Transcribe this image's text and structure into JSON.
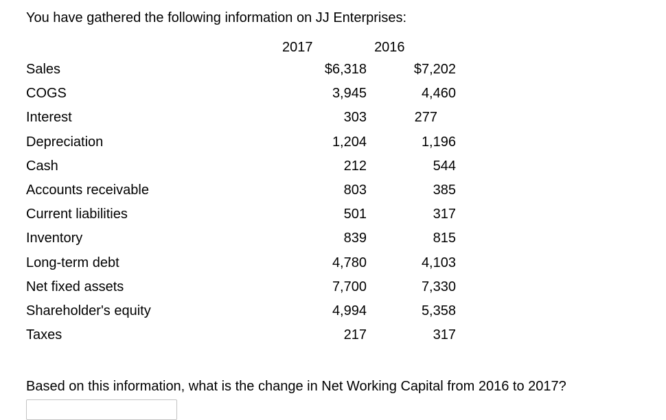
{
  "intro": "You have gathered the following information on JJ Enterprises:",
  "table": {
    "col_headers": [
      "2017",
      "2016"
    ],
    "rows": [
      {
        "label": "Sales",
        "y2017": "$6,318",
        "y2016": "$7,202"
      },
      {
        "label": "COGS",
        "y2017": "3,945",
        "y2016": "4,460"
      },
      {
        "label": "Interest",
        "y2017": "303",
        "y2016": "277"
      },
      {
        "label": "Depreciation",
        "y2017": "1,204",
        "y2016": "1,196"
      },
      {
        "label": "Cash",
        "y2017": "212",
        "y2016": "544"
      },
      {
        "label": "Accounts receivable",
        "y2017": "803",
        "y2016": "385"
      },
      {
        "label": "Current liabilities",
        "y2017": "501",
        "y2016": "317"
      },
      {
        "label": "Inventory",
        "y2017": "839",
        "y2016": "815"
      },
      {
        "label": "Long-term debt",
        "y2017": "4,780",
        "y2016": "4,103"
      },
      {
        "label": "Net fixed assets",
        "y2017": "7,700",
        "y2016": "7,330"
      },
      {
        "label": "Shareholder's equity",
        "y2017": "4,994",
        "y2016": "5,358"
      },
      {
        "label": "Taxes",
        "y2017": "217",
        "y2016": "317"
      }
    ]
  },
  "question": "Based on this information, what is the change in Net Working Capital from 2016 to 2017?",
  "answer_input": {
    "value": "",
    "placeholder": ""
  },
  "colors": {
    "text": "#000000",
    "input_border": "#c3c3c3"
  }
}
